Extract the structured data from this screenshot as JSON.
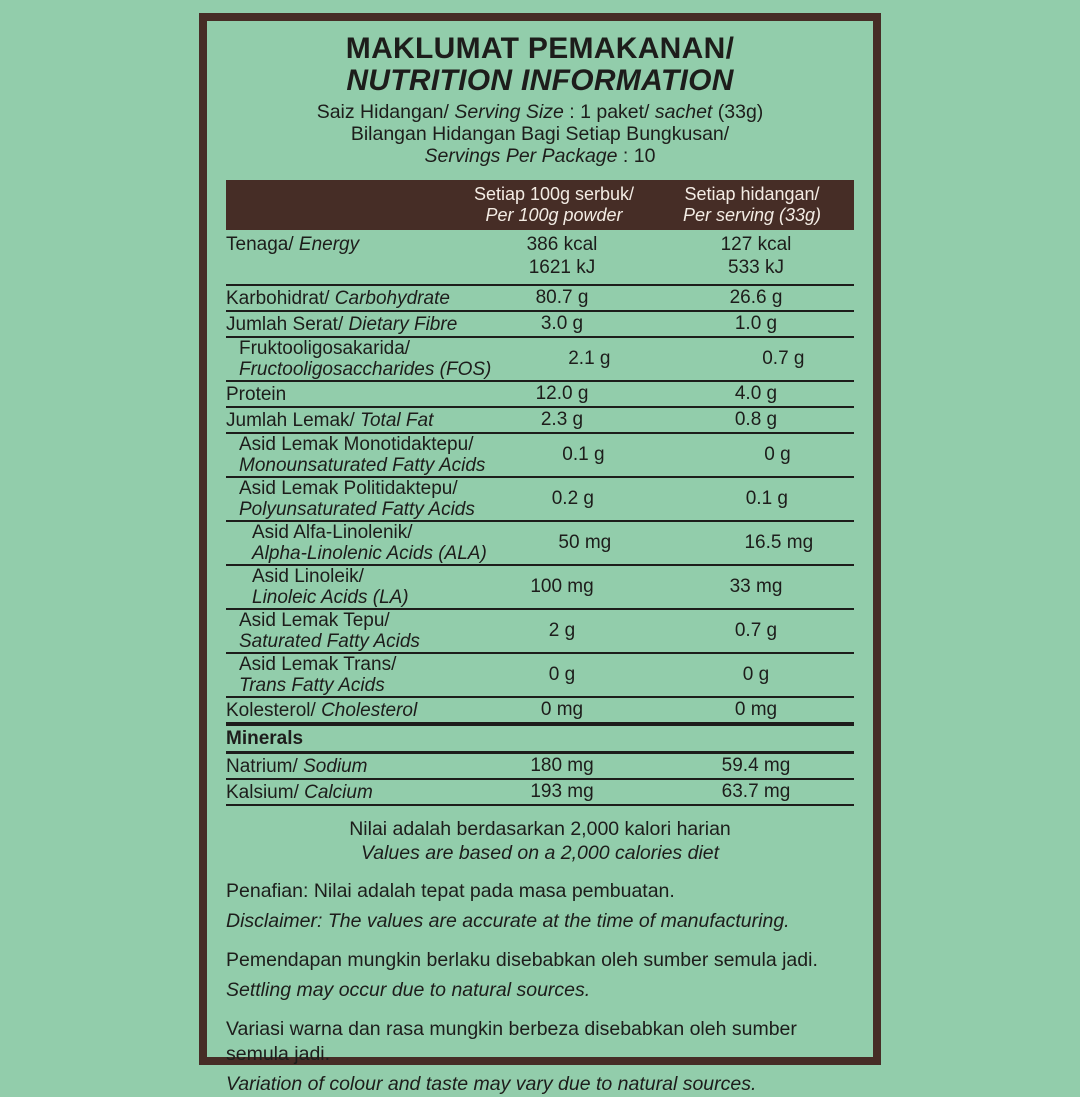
{
  "colors": {
    "background": "#92cdab",
    "frame_brown": "#462d26",
    "header_bar_bg": "#462d26",
    "header_bar_text": "#f3ece4",
    "text": "#1d1d1b"
  },
  "title": {
    "line1": "MAKLUMAT PEMAKANAN/",
    "line2": "NUTRITION INFORMATION"
  },
  "serving": {
    "l1a": "Saiz Hidangan/ ",
    "l1b": "Serving Size",
    "l1c": " : 1 paket/ ",
    "l1d": "sachet",
    "l1e": " (33g)",
    "l2": "Bilangan Hidangan Bagi Setiap Bungkusan/",
    "l3a": "Servings Per Package",
    "l3b": " : 10"
  },
  "table": {
    "header": {
      "col2_line1": "Setiap 100g serbuk/",
      "col2_line2": "Per 100g powder",
      "col3_line1": "Setiap hidangan/",
      "col3_line2": "Per serving (33g)"
    },
    "rows": [
      {
        "my": "Tenaga/",
        "en": "Energy",
        "v1a": "386 kcal",
        "v1b": "1621 kJ",
        "v2a": "127 kcal",
        "v2b": "533 kJ"
      },
      {
        "my": "Karbohidrat/",
        "en": "Carbohydrate",
        "v1": "80.7 g",
        "v2": "26.6 g"
      },
      {
        "my": "Jumlah Serat/",
        "en": "Dietary Fibre",
        "v1": "3.0 g",
        "v2": "1.0 g"
      },
      {
        "my": "Fruktooligosakarida/",
        "en": "Fructooligosaccharides (FOS)",
        "v1": "2.1 g",
        "v2": "0.7 g"
      },
      {
        "my": "Protein",
        "en": "",
        "v1": "12.0 g",
        "v2": "4.0 g"
      },
      {
        "my": "Jumlah Lemak/",
        "en": "Total Fat",
        "v1": "2.3 g",
        "v2": "0.8 g"
      },
      {
        "my": "Asid Lemak Monotidaktepu/",
        "en": "Monounsaturated Fatty Acids",
        "v1": "0.1 g",
        "v2": "0 g"
      },
      {
        "my": "Asid Lemak Politidaktepu/",
        "en": "Polyunsaturated Fatty Acids",
        "v1": "0.2 g",
        "v2": "0.1 g"
      },
      {
        "my": "Asid Alfa-Linolenik/",
        "en": "Alpha-Linolenic Acids (ALA)",
        "v1": "50 mg",
        "v2": "16.5 mg"
      },
      {
        "my": "Asid Linoleik/",
        "en": "Linoleic Acids (LA)",
        "v1": "100 mg",
        "v2": "33 mg"
      },
      {
        "my": "Asid Lemak Tepu/",
        "en": "Saturated Fatty Acids",
        "v1": "2 g",
        "v2": "0.7 g"
      },
      {
        "my": "Asid Lemak Trans/",
        "en": "Trans Fatty Acids",
        "v1": "0 g",
        "v2": "0 g"
      },
      {
        "my": "Kolesterol/",
        "en": "Cholesterol",
        "v1": "0 mg",
        "v2": "0 mg"
      },
      {
        "my": "Minerals"
      },
      {
        "my": "Natrium/",
        "en": "Sodium",
        "v1": "180 mg",
        "v2": "59.4 mg"
      },
      {
        "my": "Kalsium/",
        "en": "Calcium",
        "v1": "193 mg",
        "v2": "63.7 mg"
      }
    ]
  },
  "notes": {
    "calorie_my": "Nilai adalah berdasarkan 2,000 kalori harian",
    "calorie_en": "Values are based on a 2,000 calories diet",
    "disclaimer_my": "Penafian: Nilai adalah tepat pada masa pembuatan.",
    "disclaimer_en": "Disclaimer: The values are accurate at the time of manufacturing.",
    "settling_my": "Pemendapan mungkin berlaku disebabkan oleh sumber semula jadi.",
    "settling_en": "Settling may occur due to natural sources.",
    "variation_my": "Variasi warna dan rasa mungkin berbeza disebabkan oleh sumber semula jadi.",
    "variation_en": "Variation of colour and taste may vary due to natural sources."
  }
}
